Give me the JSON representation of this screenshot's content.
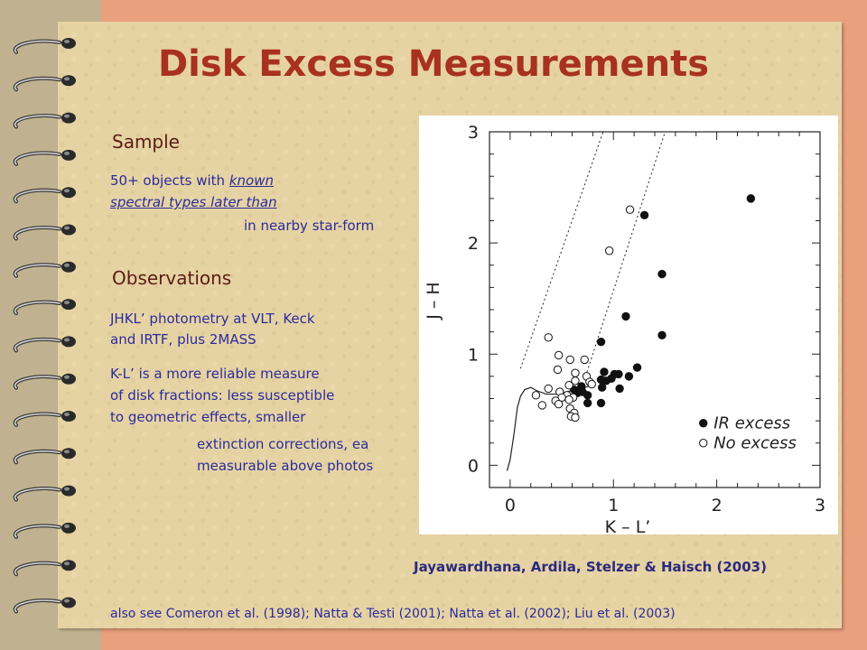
{
  "slide": {
    "title": "Disk Excess Measurements",
    "sample": {
      "heading": "Sample",
      "line1_prefix": "50+ objects with ",
      "line1_italic": "known",
      "line2_italic": "spectral types later than",
      "line3": "in nearby star-form"
    },
    "observations": {
      "heading": "Observations",
      "para1_line1": "JHKL’ photometry at VLT, Keck",
      "para1_line2": "and IRTF, plus  2MASS",
      "para2_line1": "K-L’ is a more reliable measure",
      "para2_line2": "of disk fractions: less susceptible",
      "para2_line3": "to geometric effects, smaller",
      "para2_line4": "extinction corrections, ea",
      "para2_line5": "measurable above photos"
    },
    "caption": "Jayawardhana, Ardila, Stelzer & Haisch (2003)",
    "footer": "also see Comeron et al. (1998); Natta & Testi (2001); Natta et al. (2002); Liu et al. (2003)"
  },
  "chart_data": {
    "type": "scatter",
    "xlabel": "K – L’",
    "ylabel": "J – H",
    "xlim": [
      -0.2,
      3.0
    ],
    "ylim": [
      -0.2,
      3.0
    ],
    "xticks": [
      "0",
      "1",
      "2",
      "3"
    ],
    "yticks": [
      "0",
      "1",
      "2",
      "3"
    ],
    "legend_position": "bottom-right",
    "series": [
      {
        "name": "IR excess",
        "marker": "filled",
        "points": [
          [
            2.33,
            2.4
          ],
          [
            1.3,
            2.25
          ],
          [
            1.47,
            1.72
          ],
          [
            1.12,
            1.34
          ],
          [
            1.47,
            1.17
          ],
          [
            0.88,
            1.11
          ],
          [
            1.23,
            0.88
          ],
          [
            0.91,
            0.84
          ],
          [
            1.01,
            0.82
          ],
          [
            1.05,
            0.82
          ],
          [
            1.15,
            0.8
          ],
          [
            0.88,
            0.77
          ],
          [
            0.98,
            0.78
          ],
          [
            0.93,
            0.76
          ],
          [
            1.06,
            0.69
          ],
          [
            0.89,
            0.7
          ],
          [
            0.69,
            0.71
          ],
          [
            0.7,
            0.66
          ],
          [
            0.65,
            0.65
          ],
          [
            0.75,
            0.63
          ],
          [
            0.62,
            0.68
          ],
          [
            0.88,
            0.56
          ],
          [
            0.75,
            0.56
          ]
        ]
      },
      {
        "name": "No excess",
        "marker": "open",
        "points": [
          [
            1.16,
            2.3
          ],
          [
            0.96,
            1.93
          ],
          [
            0.37,
            1.15
          ],
          [
            0.47,
            0.99
          ],
          [
            0.58,
            0.95
          ],
          [
            0.72,
            0.95
          ],
          [
            0.46,
            0.86
          ],
          [
            0.63,
            0.83
          ],
          [
            0.74,
            0.8
          ],
          [
            0.77,
            0.75
          ],
          [
            0.63,
            0.76
          ],
          [
            0.79,
            0.73
          ],
          [
            0.57,
            0.72
          ],
          [
            0.25,
            0.63
          ],
          [
            0.37,
            0.69
          ],
          [
            0.48,
            0.66
          ],
          [
            0.55,
            0.63
          ],
          [
            0.61,
            0.61
          ],
          [
            0.5,
            0.61
          ],
          [
            0.44,
            0.58
          ],
          [
            0.57,
            0.59
          ],
          [
            0.47,
            0.55
          ],
          [
            0.31,
            0.54
          ],
          [
            0.58,
            0.51
          ],
          [
            0.62,
            0.47
          ],
          [
            0.59,
            0.44
          ],
          [
            0.63,
            0.43
          ]
        ]
      }
    ],
    "reddening_lines": [
      [
        [
          0.1,
          0.87
        ],
        [
          0.9,
          3.0
        ]
      ],
      [
        [
          0.73,
          0.8
        ],
        [
          1.5,
          3.0
        ]
      ]
    ],
    "locus_curve": [
      [
        -0.03,
        -0.05
      ],
      [
        0.0,
        0.05
      ],
      [
        0.04,
        0.3
      ],
      [
        0.07,
        0.52
      ],
      [
        0.1,
        0.62
      ],
      [
        0.14,
        0.68
      ],
      [
        0.2,
        0.7
      ],
      [
        0.26,
        0.67
      ],
      [
        0.35,
        0.64
      ],
      [
        0.45,
        0.64
      ],
      [
        0.55,
        0.66
      ],
      [
        0.62,
        0.68
      ],
      [
        0.7,
        0.69
      ],
      [
        0.78,
        0.72
      ]
    ]
  }
}
